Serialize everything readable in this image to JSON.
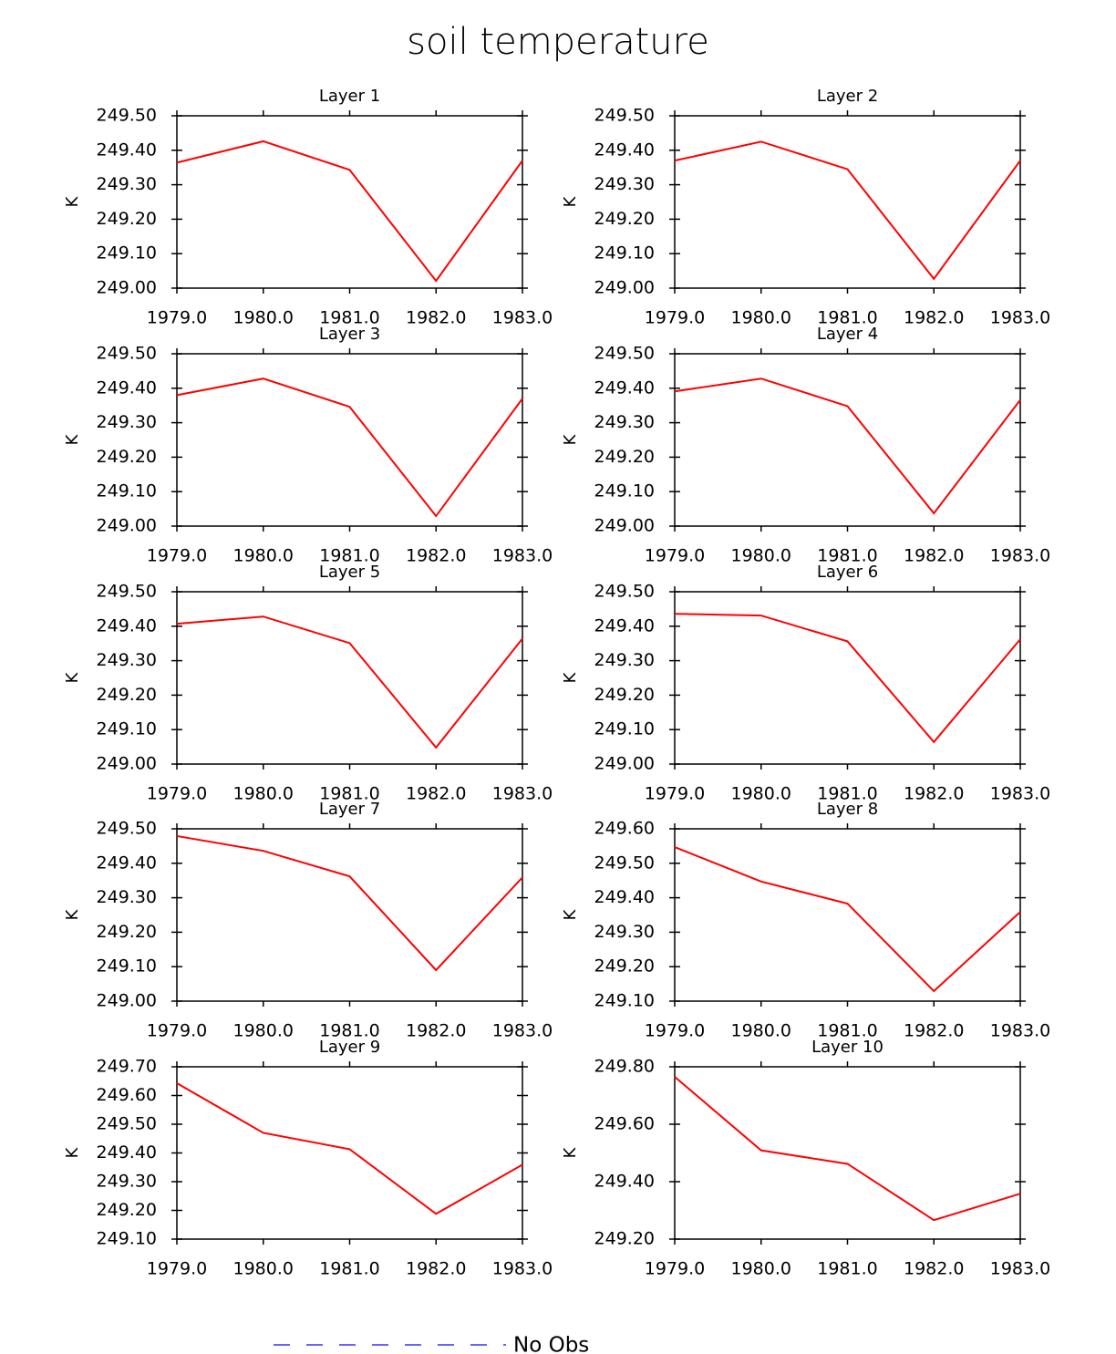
{
  "title": "soil temperature",
  "legend": [
    {
      "name": "No Obs",
      "color": "#3333ff",
      "dashed": true
    }
  ],
  "chart_data": [
    {
      "type": "line",
      "title": "Layer 1",
      "ylabel": "K",
      "x": [
        1979,
        1980,
        1981,
        1982,
        1983
      ],
      "xlim": [
        1979,
        1983
      ],
      "xticks": [
        {
          "value": 1979,
          "label": "1979.0"
        },
        {
          "value": 1980,
          "label": "1980.0"
        },
        {
          "value": 1981,
          "label": "1981.0"
        },
        {
          "value": 1982,
          "label": "1982.0"
        },
        {
          "value": 1983,
          "label": "1983.0"
        }
      ],
      "ylim": [
        249.0,
        249.5
      ],
      "yticks": [
        {
          "value": 249.0,
          "label": "249.00"
        },
        {
          "value": 249.1,
          "label": "249.10"
        },
        {
          "value": 249.2,
          "label": "249.20"
        },
        {
          "value": 249.3,
          "label": "249.30"
        },
        {
          "value": 249.4,
          "label": "249.40"
        },
        {
          "value": 249.5,
          "label": "249.50"
        }
      ],
      "series": [
        {
          "color": "#ff0000",
          "values": [
            249.364,
            249.426,
            249.343,
            249.021,
            249.37
          ]
        }
      ]
    },
    {
      "type": "line",
      "title": "Layer 2",
      "ylabel": "K",
      "x": [
        1979,
        1980,
        1981,
        1982,
        1983
      ],
      "xlim": [
        1979,
        1983
      ],
      "xticks": [
        {
          "value": 1979,
          "label": "1979.0"
        },
        {
          "value": 1980,
          "label": "1980.0"
        },
        {
          "value": 1981,
          "label": "1981.0"
        },
        {
          "value": 1982,
          "label": "1982.0"
        },
        {
          "value": 1983,
          "label": "1983.0"
        }
      ],
      "ylim": [
        249.0,
        249.5
      ],
      "yticks": [
        {
          "value": 249.0,
          "label": "249.00"
        },
        {
          "value": 249.1,
          "label": "249.10"
        },
        {
          "value": 249.2,
          "label": "249.20"
        },
        {
          "value": 249.3,
          "label": "249.30"
        },
        {
          "value": 249.4,
          "label": "249.40"
        },
        {
          "value": 249.5,
          "label": "249.50"
        }
      ],
      "series": [
        {
          "color": "#ff0000",
          "values": [
            249.37,
            249.425,
            249.345,
            249.027,
            249.37
          ]
        }
      ]
    },
    {
      "type": "line",
      "title": "Layer 3",
      "ylabel": "K",
      "x": [
        1979,
        1980,
        1981,
        1982,
        1983
      ],
      "xlim": [
        1979,
        1983
      ],
      "xticks": [
        {
          "value": 1979,
          "label": "1979.0"
        },
        {
          "value": 1980,
          "label": "1980.0"
        },
        {
          "value": 1981,
          "label": "1981.0"
        },
        {
          "value": 1982,
          "label": "1982.0"
        },
        {
          "value": 1983,
          "label": "1983.0"
        }
      ],
      "ylim": [
        249.0,
        249.5
      ],
      "yticks": [
        {
          "value": 249.0,
          "label": "249.00"
        },
        {
          "value": 249.1,
          "label": "249.10"
        },
        {
          "value": 249.2,
          "label": "249.20"
        },
        {
          "value": 249.3,
          "label": "249.30"
        },
        {
          "value": 249.4,
          "label": "249.40"
        },
        {
          "value": 249.5,
          "label": "249.50"
        }
      ],
      "series": [
        {
          "color": "#ff0000",
          "values": [
            249.38,
            249.428,
            249.346,
            249.029,
            249.37
          ]
        }
      ]
    },
    {
      "type": "line",
      "title": "Layer 4",
      "ylabel": "K",
      "x": [
        1979,
        1980,
        1981,
        1982,
        1983
      ],
      "xlim": [
        1979,
        1983
      ],
      "xticks": [
        {
          "value": 1979,
          "label": "1979.0"
        },
        {
          "value": 1980,
          "label": "1980.0"
        },
        {
          "value": 1981,
          "label": "1981.0"
        },
        {
          "value": 1982,
          "label": "1982.0"
        },
        {
          "value": 1983,
          "label": "1983.0"
        }
      ],
      "ylim": [
        249.0,
        249.5
      ],
      "yticks": [
        {
          "value": 249.0,
          "label": "249.00"
        },
        {
          "value": 249.1,
          "label": "249.10"
        },
        {
          "value": 249.2,
          "label": "249.20"
        },
        {
          "value": 249.3,
          "label": "249.30"
        },
        {
          "value": 249.4,
          "label": "249.40"
        },
        {
          "value": 249.5,
          "label": "249.50"
        }
      ],
      "series": [
        {
          "color": "#ff0000",
          "values": [
            249.391,
            249.428,
            249.348,
            249.037,
            249.366
          ]
        }
      ]
    },
    {
      "type": "line",
      "title": "Layer 5",
      "ylabel": "K",
      "x": [
        1979,
        1980,
        1981,
        1982,
        1983
      ],
      "xlim": [
        1979,
        1983
      ],
      "xticks": [
        {
          "value": 1979,
          "label": "1979.0"
        },
        {
          "value": 1980,
          "label": "1980.0"
        },
        {
          "value": 1981,
          "label": "1981.0"
        },
        {
          "value": 1982,
          "label": "1982.0"
        },
        {
          "value": 1983,
          "label": "1983.0"
        }
      ],
      "ylim": [
        249.0,
        249.5
      ],
      "yticks": [
        {
          "value": 249.0,
          "label": "249.00"
        },
        {
          "value": 249.1,
          "label": "249.10"
        },
        {
          "value": 249.2,
          "label": "249.20"
        },
        {
          "value": 249.3,
          "label": "249.30"
        },
        {
          "value": 249.4,
          "label": "249.40"
        },
        {
          "value": 249.5,
          "label": "249.50"
        }
      ],
      "series": [
        {
          "color": "#ff0000",
          "values": [
            249.407,
            249.428,
            249.351,
            249.048,
            249.364
          ]
        }
      ]
    },
    {
      "type": "line",
      "title": "Layer 6",
      "ylabel": "K",
      "x": [
        1979,
        1980,
        1981,
        1982,
        1983
      ],
      "xlim": [
        1979,
        1983
      ],
      "xticks": [
        {
          "value": 1979,
          "label": "1979.0"
        },
        {
          "value": 1980,
          "label": "1980.0"
        },
        {
          "value": 1981,
          "label": "1981.0"
        },
        {
          "value": 1982,
          "label": "1982.0"
        },
        {
          "value": 1983,
          "label": "1983.0"
        }
      ],
      "ylim": [
        249.0,
        249.5
      ],
      "yticks": [
        {
          "value": 249.0,
          "label": "249.00"
        },
        {
          "value": 249.1,
          "label": "249.10"
        },
        {
          "value": 249.2,
          "label": "249.20"
        },
        {
          "value": 249.3,
          "label": "249.30"
        },
        {
          "value": 249.4,
          "label": "249.40"
        },
        {
          "value": 249.5,
          "label": "249.50"
        }
      ],
      "series": [
        {
          "color": "#ff0000",
          "values": [
            249.436,
            249.431,
            249.356,
            249.064,
            249.362
          ]
        }
      ]
    },
    {
      "type": "line",
      "title": "Layer 7",
      "ylabel": "K",
      "x": [
        1979,
        1980,
        1981,
        1982,
        1983
      ],
      "xlim": [
        1979,
        1983
      ],
      "xticks": [
        {
          "value": 1979,
          "label": "1979.0"
        },
        {
          "value": 1980,
          "label": "1980.0"
        },
        {
          "value": 1981,
          "label": "1981.0"
        },
        {
          "value": 1982,
          "label": "1982.0"
        },
        {
          "value": 1983,
          "label": "1983.0"
        }
      ],
      "ylim": [
        249.0,
        249.5
      ],
      "yticks": [
        {
          "value": 249.0,
          "label": "249.00"
        },
        {
          "value": 249.1,
          "label": "249.10"
        },
        {
          "value": 249.2,
          "label": "249.20"
        },
        {
          "value": 249.3,
          "label": "249.30"
        },
        {
          "value": 249.4,
          "label": "249.40"
        },
        {
          "value": 249.5,
          "label": "249.50"
        }
      ],
      "series": [
        {
          "color": "#ff0000",
          "values": [
            249.479,
            249.436,
            249.362,
            249.09,
            249.359
          ]
        }
      ]
    },
    {
      "type": "line",
      "title": "Layer 8",
      "ylabel": "K",
      "x": [
        1979,
        1980,
        1981,
        1982,
        1983
      ],
      "xlim": [
        1979,
        1983
      ],
      "xticks": [
        {
          "value": 1979,
          "label": "1979.0"
        },
        {
          "value": 1980,
          "label": "1980.0"
        },
        {
          "value": 1981,
          "label": "1981.0"
        },
        {
          "value": 1982,
          "label": "1982.0"
        },
        {
          "value": 1983,
          "label": "1983.0"
        }
      ],
      "ylim": [
        249.1,
        249.6
      ],
      "yticks": [
        {
          "value": 249.1,
          "label": "249.10"
        },
        {
          "value": 249.2,
          "label": "249.20"
        },
        {
          "value": 249.3,
          "label": "249.30"
        },
        {
          "value": 249.4,
          "label": "249.40"
        },
        {
          "value": 249.5,
          "label": "249.50"
        },
        {
          "value": 249.6,
          "label": "249.60"
        }
      ],
      "series": [
        {
          "color": "#ff0000",
          "values": [
            249.547,
            249.447,
            249.383,
            249.129,
            249.359
          ]
        }
      ]
    },
    {
      "type": "line",
      "title": "Layer 9",
      "ylabel": "K",
      "x": [
        1979,
        1980,
        1981,
        1982,
        1983
      ],
      "xlim": [
        1979,
        1983
      ],
      "xticks": [
        {
          "value": 1979,
          "label": "1979.0"
        },
        {
          "value": 1980,
          "label": "1980.0"
        },
        {
          "value": 1981,
          "label": "1981.0"
        },
        {
          "value": 1982,
          "label": "1982.0"
        },
        {
          "value": 1983,
          "label": "1983.0"
        }
      ],
      "ylim": [
        249.1,
        249.7
      ],
      "yticks": [
        {
          "value": 249.1,
          "label": "249.10"
        },
        {
          "value": 249.2,
          "label": "249.20"
        },
        {
          "value": 249.3,
          "label": "249.30"
        },
        {
          "value": 249.4,
          "label": "249.40"
        },
        {
          "value": 249.5,
          "label": "249.50"
        },
        {
          "value": 249.6,
          "label": "249.60"
        },
        {
          "value": 249.7,
          "label": "249.70"
        }
      ],
      "series": [
        {
          "color": "#ff0000",
          "values": [
            249.643,
            249.47,
            249.413,
            249.188,
            249.359
          ]
        }
      ]
    },
    {
      "type": "line",
      "title": "Layer 10",
      "ylabel": "K",
      "x": [
        1979,
        1980,
        1981,
        1982,
        1983
      ],
      "xlim": [
        1979,
        1983
      ],
      "xticks": [
        {
          "value": 1979,
          "label": "1979.0"
        },
        {
          "value": 1980,
          "label": "1980.0"
        },
        {
          "value": 1981,
          "label": "1981.0"
        },
        {
          "value": 1982,
          "label": "1982.0"
        },
        {
          "value": 1983,
          "label": "1983.0"
        }
      ],
      "ylim": [
        249.2,
        249.8
      ],
      "yticks": [
        {
          "value": 249.2,
          "label": "249.20"
        },
        {
          "value": 249.4,
          "label": "249.40"
        },
        {
          "value": 249.6,
          "label": "249.60"
        },
        {
          "value": 249.8,
          "label": "249.80"
        }
      ],
      "series": [
        {
          "color": "#ff0000",
          "values": [
            249.765,
            249.509,
            249.462,
            249.266,
            249.358
          ]
        }
      ]
    }
  ]
}
